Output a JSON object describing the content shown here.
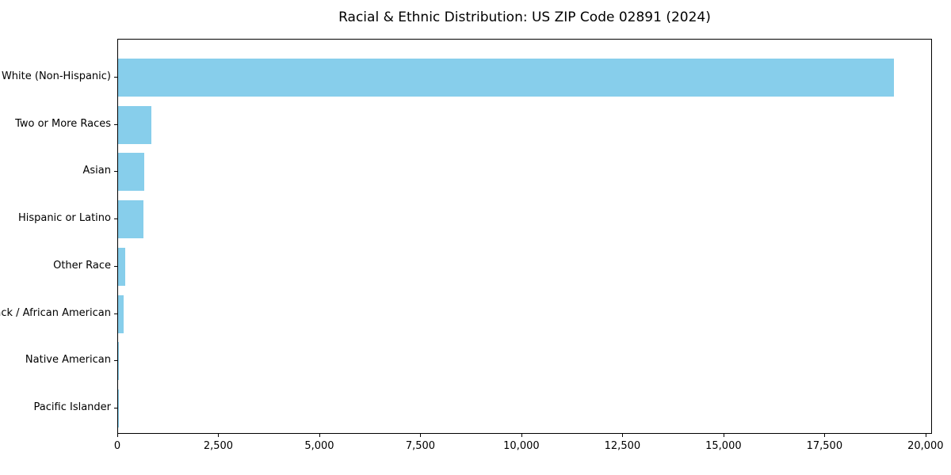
{
  "chart_data": {
    "type": "bar",
    "orientation": "horizontal",
    "title": "Racial & Ethnic Distribution: US ZIP Code 02891 (2024)",
    "categories": [
      "White (Non-Hispanic)",
      "Two or More Races",
      "Asian",
      "Hispanic or Latino",
      "Other Race",
      "Black / African American",
      "Native American",
      "Pacific Islander"
    ],
    "values": [
      19200,
      820,
      650,
      620,
      170,
      140,
      15,
      5
    ],
    "xlabel": "",
    "ylabel": "",
    "xlim": [
      0,
      20160
    ],
    "x_ticks": [
      0,
      2500,
      5000,
      7500,
      10000,
      12500,
      15000,
      17500,
      20000
    ],
    "x_tick_labels": [
      "0",
      "2,500",
      "5,000",
      "7,500",
      "10,000",
      "12,500",
      "15,000",
      "17,500",
      "20,000"
    ],
    "bar_color": "#87CEEB",
    "grid": false,
    "legend": false,
    "background": "#ffffff"
  }
}
